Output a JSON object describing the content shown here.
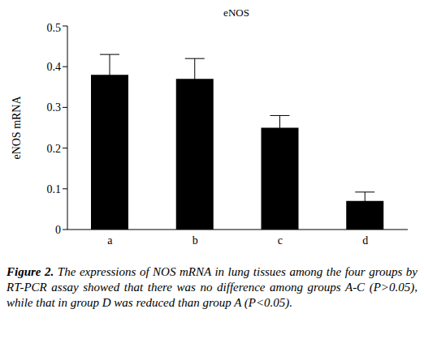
{
  "chart_data": {
    "type": "bar",
    "title": "eNOS",
    "y_label": "eNOS mRNA",
    "categories": [
      "a",
      "b",
      "c",
      "d"
    ],
    "values": [
      0.38,
      0.37,
      0.25,
      0.07
    ],
    "errors": [
      0.05,
      0.05,
      0.03,
      0.022
    ],
    "color": "#000000",
    "ylim": [
      0,
      0.5
    ],
    "yticks": [
      0,
      0.1,
      0.2,
      0.3,
      0.4,
      0.5
    ],
    "grid": false,
    "caption_label": "Figure 2.",
    "caption": "The expressions of NOS mRNA in lung tissues among the four groups by RT-PCR assay showed that there was no difference among groups A-C (P>0.05), while that in group D was reduced than group A (P<0.05)."
  }
}
